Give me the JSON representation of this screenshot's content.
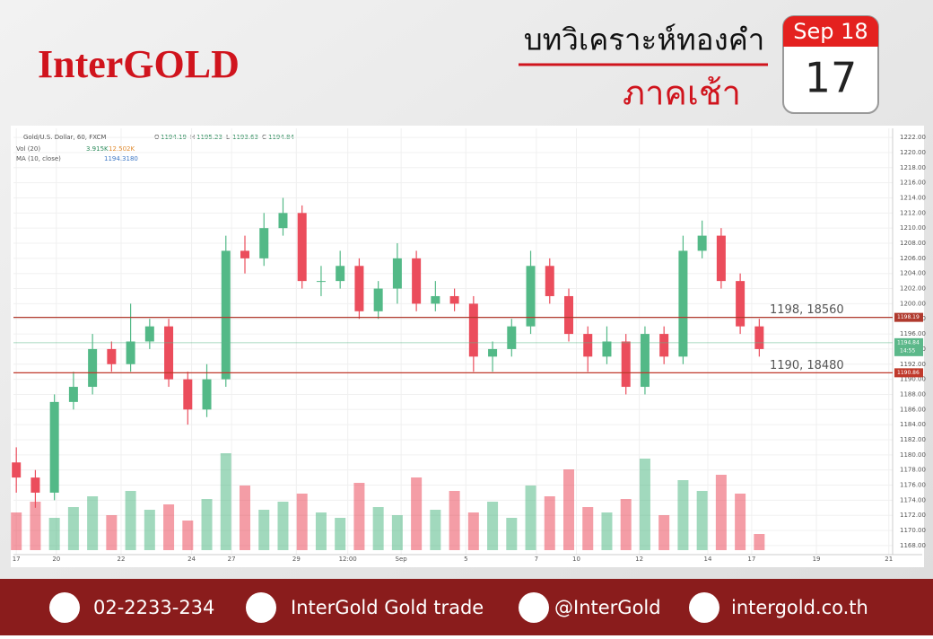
{
  "header": {
    "brand": "InterGOLD",
    "title": "บทวิเคราะห์ทองคำ",
    "session": "ภาคเช้า",
    "calendar": {
      "month": "Sep 18",
      "day": "17"
    }
  },
  "chart_data": {
    "type": "candlestick",
    "symbol": "Gold/U.S. Dollar, 60, FXCM",
    "quote": [
      {
        "key": "O",
        "value": 1194.19
      },
      {
        "key": "H",
        "value": 1195.23
      },
      {
        "key": "L",
        "value": 1193.63
      },
      {
        "key": "C",
        "value": 1194.84
      }
    ],
    "volume_indicator": {
      "name": "Vol (20)",
      "values": [
        {
          "value": 3.915,
          "label": "3.915K"
        },
        {
          "value": 12.502,
          "label": "12.502K"
        }
      ]
    },
    "ma_indicator": {
      "name": "MA (10, close)",
      "value": 1194.318,
      "value_label": "1194.3180"
    },
    "open": [
      1179,
      1177,
      1175,
      1187,
      1189,
      1194,
      1192,
      1195,
      1197,
      1190,
      1186,
      1190,
      1207,
      1206,
      1210,
      1212,
      1203,
      1203,
      1205,
      1199,
      1202,
      1206,
      1200,
      1201,
      1200,
      1193,
      1194,
      1197,
      1205,
      1201,
      1196,
      1193,
      1195,
      1189,
      1196,
      1193,
      1207,
      1209,
      1203,
      1197
    ],
    "high": [
      1181,
      1178,
      1188,
      1191,
      1196,
      1195,
      1200,
      1198,
      1198,
      1191,
      1192,
      1209,
      1209,
      1212,
      1214,
      1213,
      1205,
      1207,
      1206,
      1203,
      1208,
      1207,
      1203,
      1202,
      1201,
      1195,
      1198,
      1207,
      1206,
      1202,
      1197,
      1197,
      1196,
      1197,
      1197,
      1209,
      1211,
      1210,
      1204,
      1198
    ],
    "low": [
      1175,
      1173,
      1174,
      1186,
      1188,
      1191,
      1191,
      1194,
      1189,
      1184,
      1185,
      1189,
      1204,
      1205,
      1209,
      1202,
      1201,
      1202,
      1198,
      1198,
      1200,
      1199,
      1199,
      1199,
      1191,
      1191,
      1193,
      1196,
      1200,
      1195,
      1191,
      1192,
      1188,
      1188,
      1192,
      1192,
      1206,
      1202,
      1196,
      1193
    ],
    "close": [
      1177,
      1175,
      1187,
      1189,
      1194,
      1192,
      1195,
      1197,
      1190,
      1186,
      1190,
      1207,
      1206,
      1210,
      1212,
      1203,
      1203,
      1205,
      1199,
      1202,
      1206,
      1200,
      1201,
      1200,
      1193,
      1194,
      1197,
      1205,
      1201,
      1196,
      1193,
      1195,
      1189,
      1196,
      1193,
      1207,
      1209,
      1203,
      1197,
      1194
    ],
    "volume": [
      14,
      18,
      12,
      16,
      20,
      13,
      22,
      15,
      17,
      11,
      19,
      36,
      24,
      15,
      18,
      21,
      14,
      12,
      25,
      16,
      13,
      27,
      15,
      22,
      14,
      18,
      12,
      24,
      20,
      30,
      16,
      14,
      19,
      34,
      13,
      26,
      22,
      28,
      21,
      6
    ],
    "volume_ylim": [
      0,
      40
    ],
    "up_color": "#53b987",
    "down_color": "#eb4d5c",
    "levels": [
      {
        "value": 1198.19,
        "label": "1198, 18560",
        "color": "#b03a2e"
      },
      {
        "value": 1190.86,
        "label": "1190, 18480",
        "color": "#c0392b"
      }
    ],
    "last_price": {
      "value": 1194.84,
      "time": "14:55",
      "color": "#5cb88a"
    },
    "ylim": [
      1166.8,
      1223.2
    ],
    "yticks": [
      {
        "value": 1168,
        "label": "1168.00"
      },
      {
        "value": 1170,
        "label": "1170.00"
      },
      {
        "value": 1172,
        "label": "1172.00"
      },
      {
        "value": 1174,
        "label": "1174.00"
      },
      {
        "value": 1176,
        "label": "1176.00"
      },
      {
        "value": 1178,
        "label": "1178.00"
      },
      {
        "value": 1180,
        "label": "1180.00"
      },
      {
        "value": 1182,
        "label": "1182.00"
      },
      {
        "value": 1184,
        "label": "1184.00"
      },
      {
        "value": 1186,
        "label": "1186.00"
      },
      {
        "value": 1188,
        "label": "1188.00"
      },
      {
        "value": 1190,
        "label": "1190.00"
      },
      {
        "value": 1192,
        "label": "1192.00"
      },
      {
        "value": 1194,
        "label": "1194.00"
      },
      {
        "value": 1196,
        "label": "1196.00"
      },
      {
        "value": 1198,
        "label": "1198.00"
      },
      {
        "value": 1200,
        "label": "1200.00"
      },
      {
        "value": 1202,
        "label": "1202.00"
      },
      {
        "value": 1204,
        "label": "1204.00"
      },
      {
        "value": 1206,
        "label": "1206.00"
      },
      {
        "value": 1208,
        "label": "1208.00"
      },
      {
        "value": 1210,
        "label": "1210.00"
      },
      {
        "value": 1212,
        "label": "1212.00"
      },
      {
        "value": 1214,
        "label": "1214.00"
      },
      {
        "value": 1216,
        "label": "1216.00"
      },
      {
        "value": 1218,
        "label": "1218.00"
      },
      {
        "value": 1220,
        "label": "1220.00"
      },
      {
        "value": 1222,
        "label": "1222.00"
      }
    ],
    "xlim": [
      -0.15,
      46
    ],
    "xticks": [
      {
        "value": 0,
        "label": "17"
      },
      {
        "value": 2.1,
        "label": "20"
      },
      {
        "value": 5.5,
        "label": "22"
      },
      {
        "value": 9.2,
        "label": "24"
      },
      {
        "value": 11.3,
        "label": "27"
      },
      {
        "value": 14.7,
        "label": "29"
      },
      {
        "value": 17.4,
        "label": "12:00"
      },
      {
        "value": 20.2,
        "label": "Sep"
      },
      {
        "value": 23.6,
        "label": "5"
      },
      {
        "value": 27.3,
        "label": "7"
      },
      {
        "value": 29.4,
        "label": "10"
      },
      {
        "value": 32.7,
        "label": "12"
      },
      {
        "value": 36.3,
        "label": "14"
      },
      {
        "value": 38.6,
        "label": "17"
      },
      {
        "value": 42,
        "label": "19"
      },
      {
        "value": 45.8,
        "label": "21"
      }
    ],
    "grid": true
  },
  "footer": {
    "phone": "02-2233-234",
    "facebook": "InterGold Gold trade",
    "line": "@InterGold",
    "website": "intergold.co.th"
  }
}
